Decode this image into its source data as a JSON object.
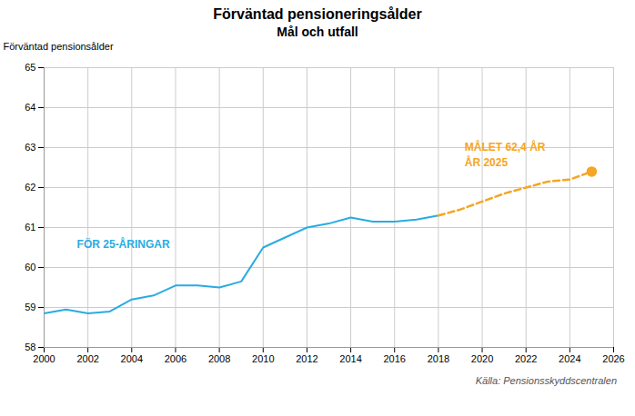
{
  "chart_data": {
    "type": "line",
    "title": "Förväntad pensioneringsålder",
    "subtitle": "Mål och utfall",
    "ylabel": "Förväntad pensionsålder",
    "source": "Källa: Pensionsskyddscentralen",
    "series": [
      {
        "type": "line",
        "color": "#29ABE2",
        "line_style": "solid",
        "x": [
          2000,
          2001,
          2002,
          2003,
          2004,
          2005,
          2006,
          2007,
          2008,
          2009,
          2010,
          2011,
          2012,
          2013,
          2014,
          2015,
          2016,
          2017,
          2018
        ],
        "values": [
          58.85,
          58.95,
          58.85,
          58.9,
          59.2,
          59.3,
          59.55,
          59.55,
          59.5,
          59.65,
          60.5,
          60.75,
          61.0,
          61.1,
          61.25,
          61.15,
          61.15,
          61.2,
          61.3
        ]
      },
      {
        "type": "line",
        "color": "#F5A623",
        "line_style": "dashed",
        "x": [
          2018,
          2019,
          2020,
          2021,
          2022,
          2023,
          2024,
          2025
        ],
        "values": [
          61.3,
          61.45,
          61.65,
          61.85,
          62.0,
          62.15,
          62.2,
          62.4
        ]
      },
      {
        "type": "scatter",
        "color": "#F5A623",
        "marker": "circle",
        "x": [
          2025
        ],
        "values": [
          62.4
        ]
      }
    ],
    "annotations": [
      {
        "text": "FÖR 25-ÅRINGAR",
        "x": 2001.5,
        "y": 60.6,
        "color": "#29ABE2"
      },
      {
        "text": "MÅLET 62,4 ÅR\nÅR 2025",
        "x": 2019.2,
        "y": 62.85,
        "color": "#F5A623"
      }
    ],
    "xlim": [
      2000,
      2026
    ],
    "xticks": [
      2000,
      2002,
      2004,
      2006,
      2008,
      2010,
      2012,
      2014,
      2016,
      2018,
      2020,
      2022,
      2024,
      2026
    ],
    "ylim": [
      58,
      65
    ],
    "yticks": [
      58,
      59,
      60,
      61,
      62,
      63,
      64,
      65
    ],
    "grid": true
  }
}
